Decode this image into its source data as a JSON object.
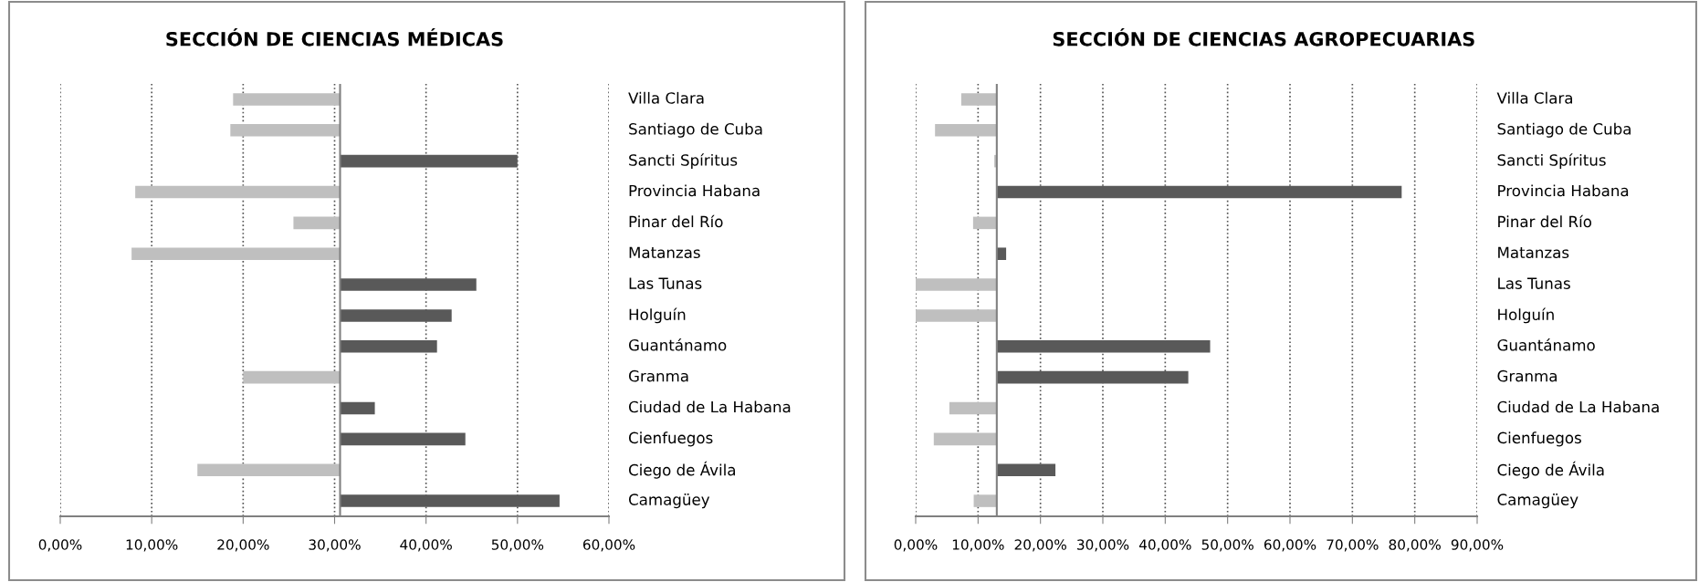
{
  "chart_data": [
    {
      "type": "bar",
      "orientation": "horizontal",
      "title": "SECCIÓN DE CIENCIAS MÉDICAS",
      "grid": "x",
      "categories": [
        "Villa Clara",
        "Santiago de Cuba",
        "Sancti Spíritus",
        "Provincia Habana",
        "Pinar del Río",
        "Matanzas",
        "Las Tunas",
        "Holguín",
        "Guantánamo",
        "Granma",
        "Ciudad de La Habana",
        "Cienfuegos",
        "Ciego de Ávila",
        "Camagüey"
      ],
      "values": [
        -11.7,
        -12.0,
        19.4,
        -22.4,
        -5.1,
        -22.8,
        14.9,
        12.2,
        10.6,
        -10.6,
        3.8,
        13.7,
        -15.6,
        24.0
      ],
      "base": [
        30.6,
        30.6,
        30.6,
        30.6,
        30.6,
        30.6,
        30.6,
        30.6,
        30.6,
        30.6,
        30.6,
        30.6,
        30.6,
        30.6
      ],
      "ref_lines": [
        {
          "axis": "x",
          "value": 30.6,
          "color": "#808080"
        }
      ],
      "colors": [
        "#bfbfbf",
        "#bfbfbf",
        "#595959",
        "#bfbfbf",
        "#bfbfbf",
        "#bfbfbf",
        "#595959",
        "#595959",
        "#595959",
        "#bfbfbf",
        "#595959",
        "#595959",
        "#bfbfbf",
        "#595959"
      ],
      "xlim": [
        0,
        60
      ],
      "xticks": [
        {
          "value": 0,
          "label": "0,00%"
        },
        {
          "value": 10,
          "label": "10,00%"
        },
        {
          "value": 20,
          "label": "20,00%"
        },
        {
          "value": 30,
          "label": "30,00%"
        },
        {
          "value": 40,
          "label": "40,00%"
        },
        {
          "value": 50,
          "label": "50,00%"
        },
        {
          "value": 60,
          "label": "60,00%"
        }
      ]
    },
    {
      "type": "bar",
      "orientation": "horizontal",
      "title": "SECCIÓN DE CIENCIAS AGROPECUARIAS",
      "grid": "x",
      "categories": [
        "Villa Clara",
        "Santiago de Cuba",
        "Sancti Spíritus",
        "Provincia Habana",
        "Pinar del Río",
        "Matanzas",
        "Las Tunas",
        "Holguín",
        "Guantánamo",
        "Granma",
        "Ciudad de La Habana",
        "Cienfuegos",
        "Ciego de Ávila",
        "Camagüey"
      ],
      "values": [
        -5.7,
        -9.9,
        -0.4,
        64.9,
        -3.8,
        1.5,
        -13.0,
        -13.0,
        34.2,
        30.7,
        -7.6,
        -10.1,
        9.4,
        -3.7
      ],
      "base": [
        13.0,
        13.0,
        13.0,
        13.0,
        13.0,
        13.0,
        13.0,
        13.0,
        13.0,
        13.0,
        13.0,
        13.0,
        13.0,
        13.0
      ],
      "ref_lines": [
        {
          "axis": "x",
          "value": 13.0,
          "color": "#808080"
        }
      ],
      "colors": [
        "#bfbfbf",
        "#bfbfbf",
        "#bfbfbf",
        "#595959",
        "#bfbfbf",
        "#595959",
        "#bfbfbf",
        "#bfbfbf",
        "#595959",
        "#595959",
        "#bfbfbf",
        "#bfbfbf",
        "#595959",
        "#bfbfbf"
      ],
      "xlim": [
        0,
        90
      ],
      "xticks": [
        {
          "value": 0,
          "label": "0,00%"
        },
        {
          "value": 10,
          "label": "10,00%"
        },
        {
          "value": 20,
          "label": "20,00%"
        },
        {
          "value": 30,
          "label": "30,00%"
        },
        {
          "value": 40,
          "label": "40,00%"
        },
        {
          "value": 50,
          "label": "50,00%"
        },
        {
          "value": 60,
          "label": "60,00%"
        },
        {
          "value": 70,
          "label": "70,00%"
        },
        {
          "value": 80,
          "label": "80,00%"
        },
        {
          "value": 90,
          "label": "90,00%"
        }
      ]
    }
  ]
}
